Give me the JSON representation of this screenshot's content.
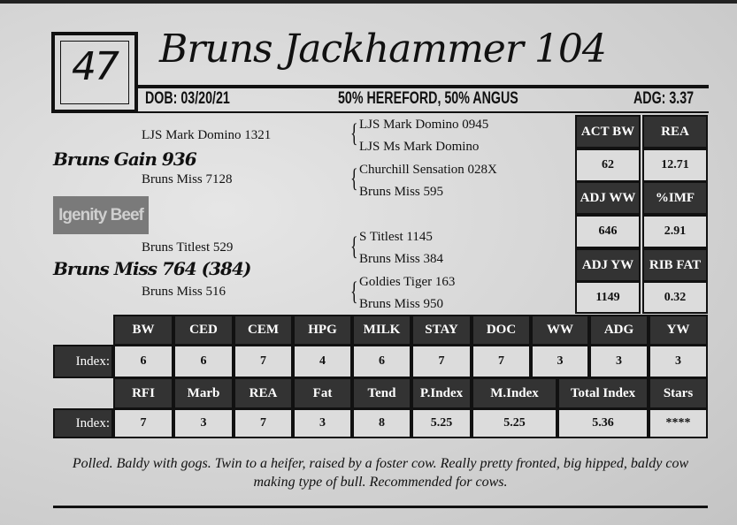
{
  "lot": "47",
  "name": "Bruns Jackhammer 104",
  "dob": "DOB: 03/20/21",
  "breed": "50% HEREFORD, 50% ANGUS",
  "adg": "ADG:  3.37",
  "pedigree": {
    "sire": "Bruns Gain 936",
    "sire_sire": "LJS Mark Domino 1321",
    "sire_dam": "Bruns Miss 7128",
    "dam": "Bruns Miss 764 (384)",
    "dam_sire": "Bruns Titlest 529",
    "dam_dam": "Bruns Miss 516",
    "g": [
      "LJS Mark Domino 0945",
      "LJS Ms Mark Domino",
      "Churchill Sensation 028X",
      "Bruns Miss 595",
      "S Titlest 1145",
      "Bruns Miss 384",
      "Goldies Tiger 163",
      "Bruns Miss 950"
    ]
  },
  "logo": "Igenity Beef",
  "stats": [
    [
      "ACT BW",
      "REA"
    ],
    [
      "62",
      "12.71"
    ],
    [
      "ADJ WW",
      "%IMF"
    ],
    [
      "646",
      "2.91"
    ],
    [
      "ADJ YW",
      "RIB FAT"
    ],
    [
      "1149",
      "0.32"
    ]
  ],
  "index_label": "Index:",
  "row1_headers": [
    "BW",
    "CED",
    "CEM",
    "HPG",
    "MILK",
    "STAY",
    "DOC",
    "WW",
    "ADG",
    "YW"
  ],
  "row1_values": [
    "6",
    "6",
    "7",
    "4",
    "6",
    "7",
    "7",
    "3",
    "3",
    "3"
  ],
  "row2_headers": [
    "RFI",
    "Marb",
    "REA",
    "Fat",
    "Tend",
    "P.Index",
    "M.Index",
    "Total Index",
    "Stars"
  ],
  "row2_values": [
    "7",
    "3",
    "7",
    "3",
    "8",
    "5.25",
    "5.25",
    "5.36",
    "****"
  ],
  "notes": "Polled. Baldy with gogs. Twin to a heifer, raised by a foster cow. Really pretty fronted, big hipped, baldy cow making type of bull. Recommended for cows."
}
